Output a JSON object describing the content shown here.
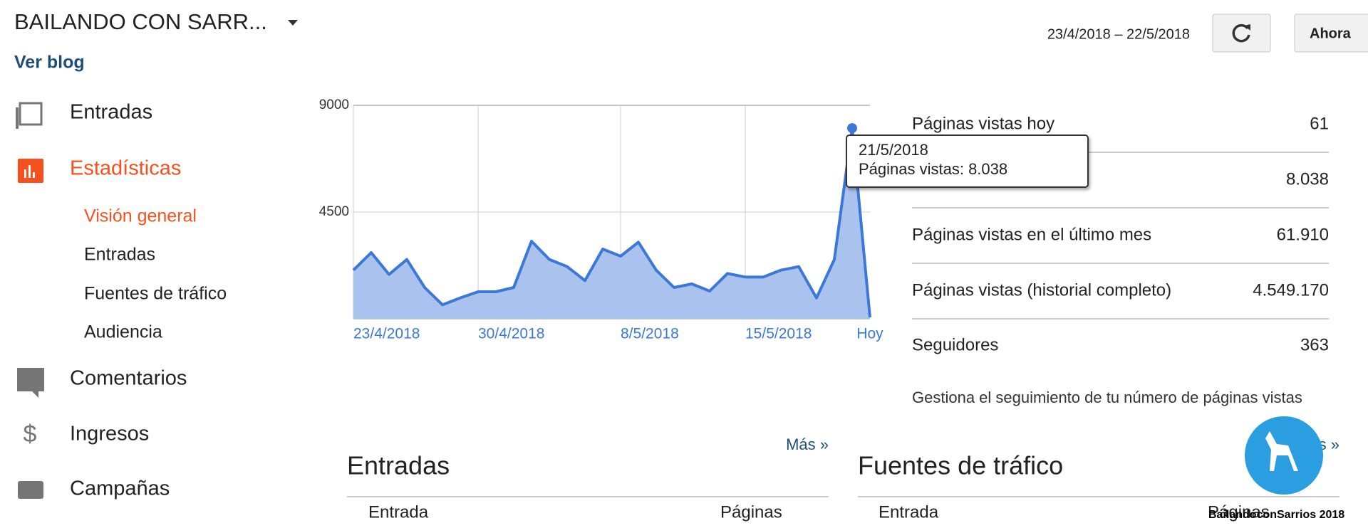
{
  "header": {
    "blog_title": "BAILANDO CON SARR...",
    "view_blog": "Ver blog",
    "date_range": "23/4/2018 – 22/5/2018",
    "now_button": "Ahora"
  },
  "nav": {
    "items": [
      "Entradas",
      "Estadísticas",
      "Comentarios",
      "Ingresos",
      "Campañas"
    ],
    "subitems": [
      "Visión general",
      "Entradas",
      "Fuentes de tráfico",
      "Audiencia"
    ]
  },
  "chart_data": {
    "type": "area",
    "color": "#3b78d8",
    "fill": "#a9c3ee",
    "categories": [
      "23/4/2018",
      null,
      null,
      null,
      null,
      null,
      null,
      "30/4/2018",
      null,
      null,
      null,
      null,
      null,
      null,
      null,
      "8/5/2018",
      null,
      null,
      null,
      null,
      null,
      null,
      "15/5/2018",
      null,
      null,
      null,
      null,
      null,
      null,
      "Hoy"
    ],
    "values": [
      2050,
      2790,
      1870,
      2500,
      1320,
      590,
      880,
      1140,
      1140,
      1320,
      3270,
      2500,
      2200,
      1610,
      2940,
      2640,
      3230,
      2050,
      1320,
      1470,
      1170,
      1910,
      1760,
      1760,
      2050,
      2200,
      880,
      2500,
      8038,
      61
    ],
    "ylim": [
      0,
      9000
    ],
    "yticks": [
      4500,
      9000
    ],
    "grid": true,
    "tooltip": {
      "date": "21/5/2018",
      "text": "Páginas vistas: 8.038"
    }
  },
  "stats": {
    "rows": [
      [
        "Páginas vistas hoy",
        "61"
      ],
      [
        null,
        "8.038"
      ],
      [
        "Páginas vistas en el último mes",
        "61.910"
      ],
      [
        "Páginas vistas (historial completo)",
        "4.549.170"
      ],
      [
        "Seguidores",
        "363"
      ]
    ],
    "footer": "Gestiona el seguimiento de tu número de páginas vistas"
  },
  "sections": [
    {
      "more": "Más »",
      "title": "Entradas",
      "columns": [
        "Entrada",
        "Páginas"
      ]
    },
    {
      "more": "Más »",
      "title": "Fuentes de tráfico",
      "columns": [
        "Entrada",
        "Páginas"
      ]
    }
  ],
  "watermark": "BailandoconSarrios 2018"
}
